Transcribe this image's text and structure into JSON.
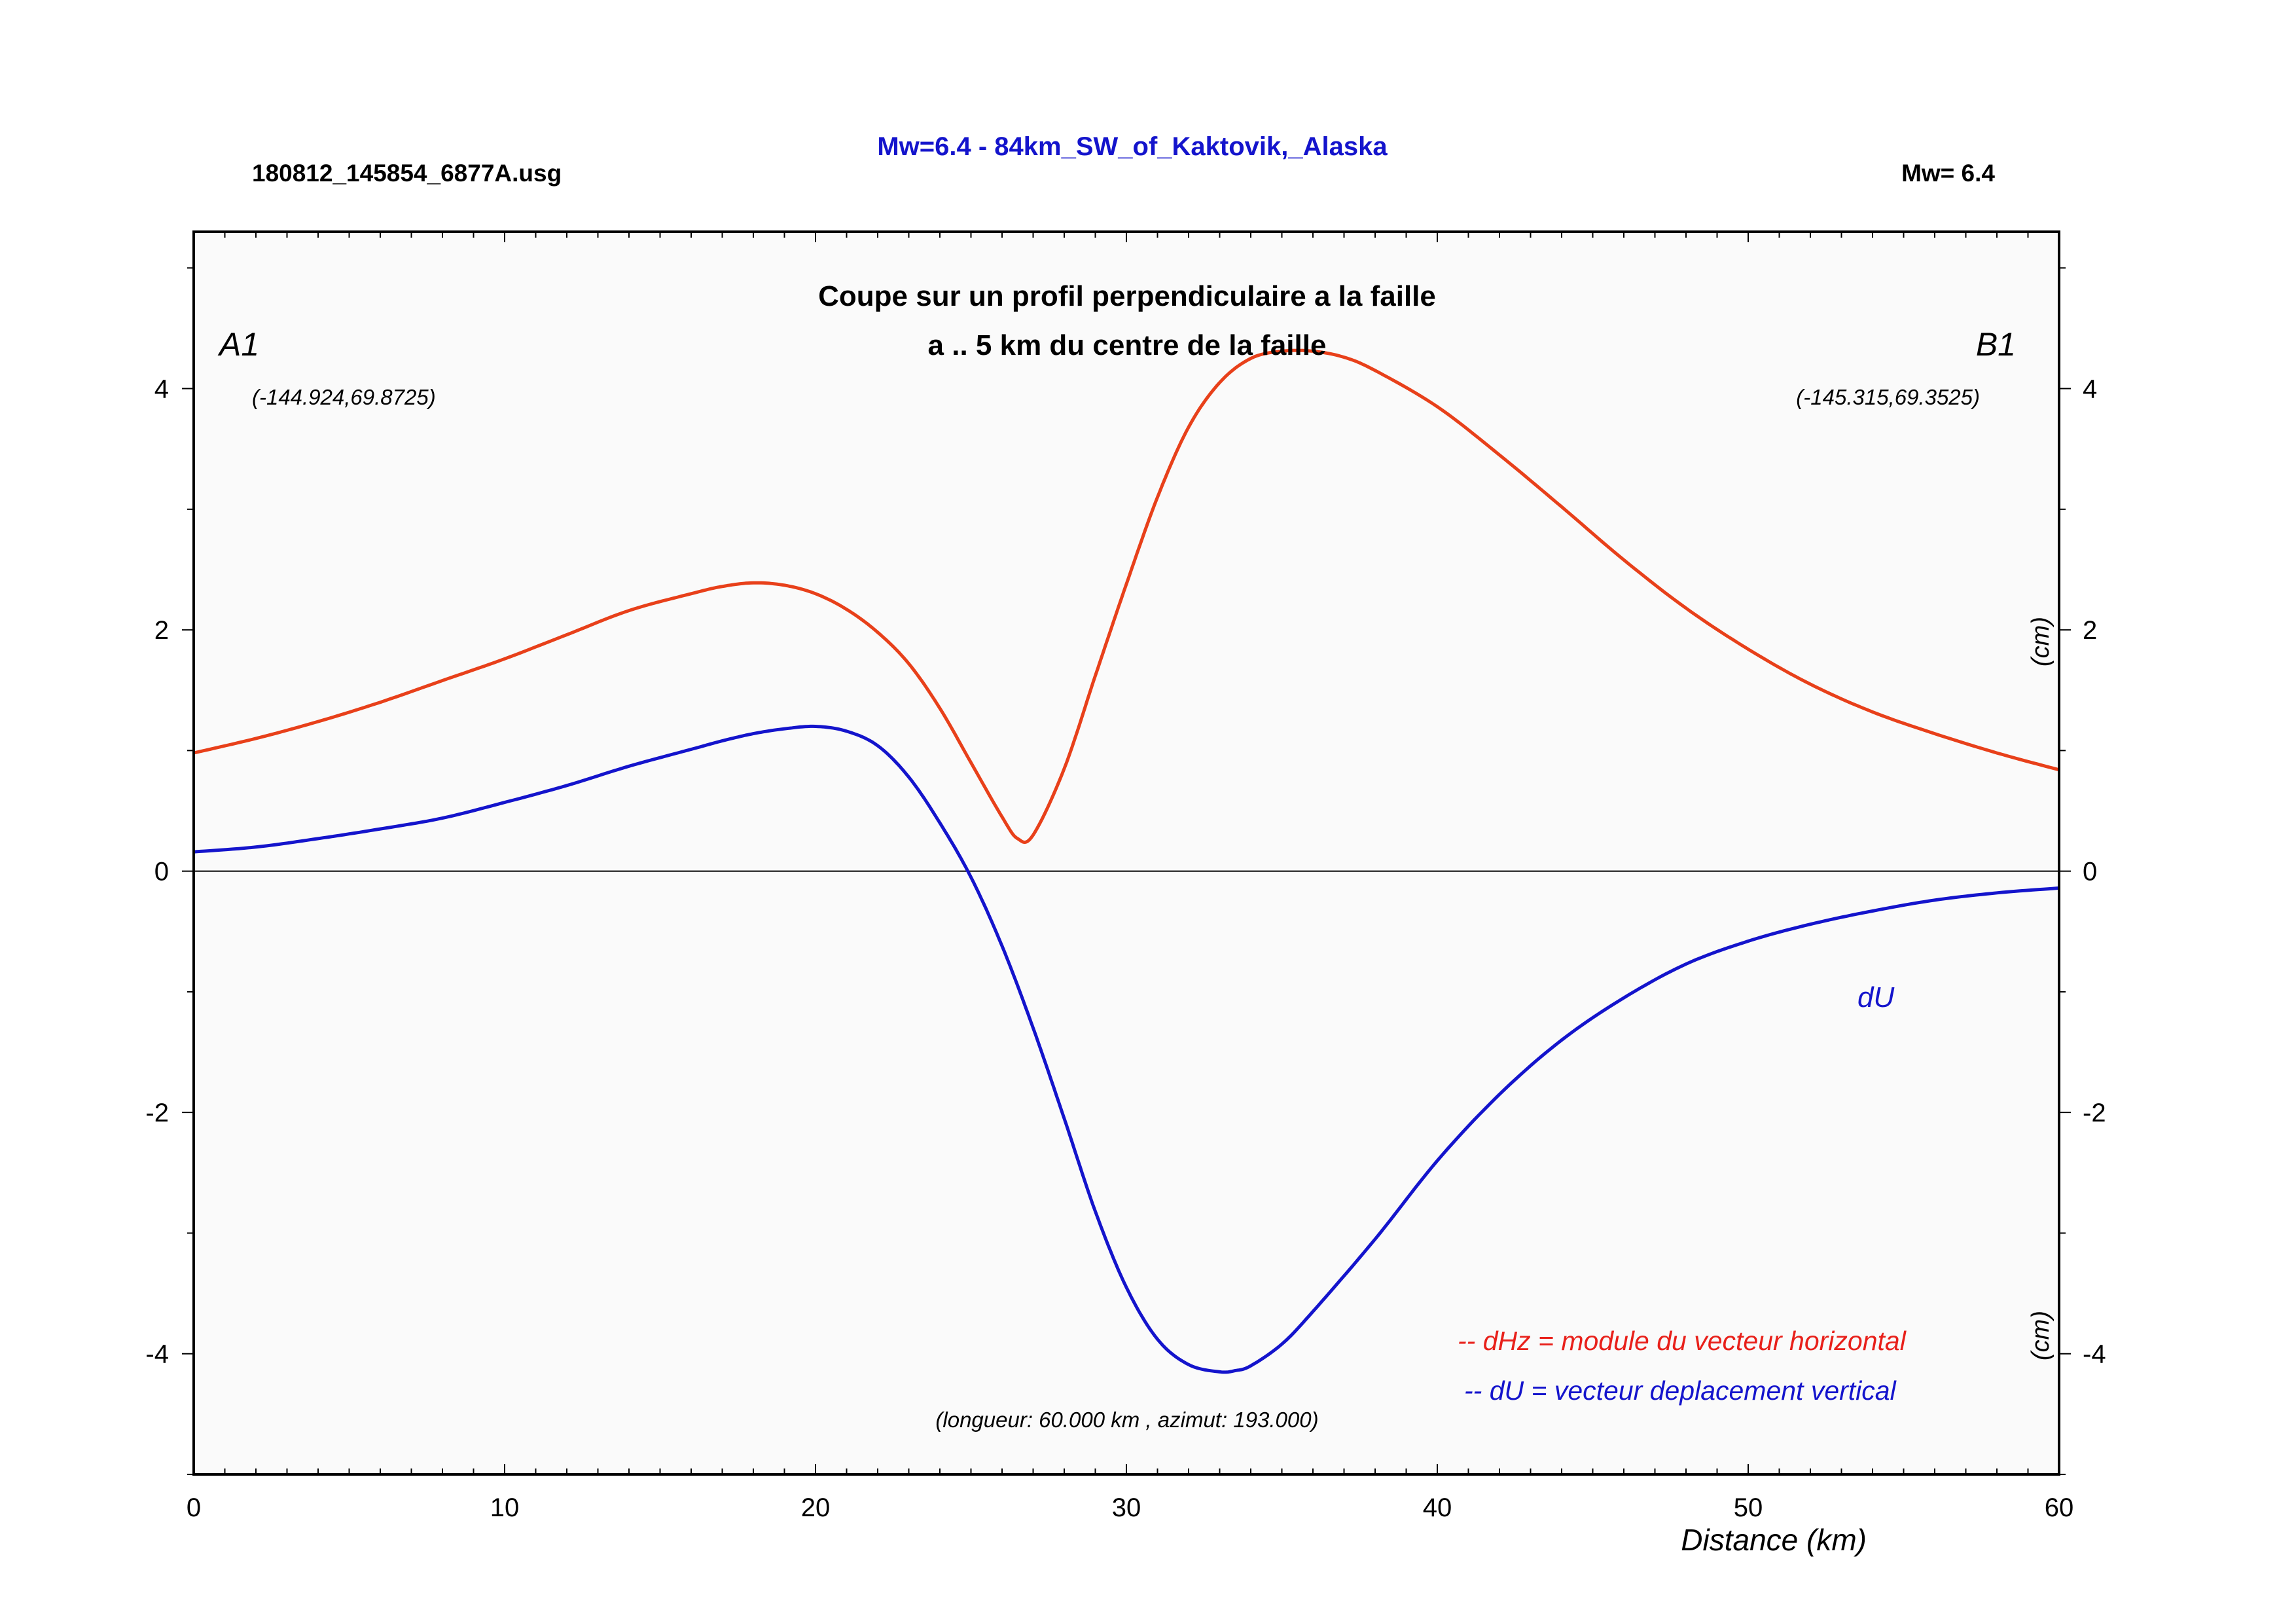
{
  "header": {
    "title": "Mw=6.4 - 84km_SW_of_Kaktovik,_Alaska",
    "file_name": "180812_145854_6877A.usg",
    "magnitude": "Mw= 6.4"
  },
  "chart_data": {
    "type": "line",
    "title": "Coupe sur un profil perpendiculaire a la faille",
    "subtitle": "a .. 5 km du centre de la faille",
    "xlabel": "Distance (km)",
    "ylabel": "(cm)",
    "xlim": [
      0,
      60
    ],
    "ylim": [
      -5,
      5.3
    ],
    "x_ticks": [
      0,
      10,
      20,
      30,
      40,
      50,
      60
    ],
    "y_ticks": [
      -4,
      -2,
      0,
      2,
      4
    ],
    "grid": false,
    "legend_position": "bottom-right",
    "colors": {
      "dHz": "#e8401a",
      "dU": "#1414cc",
      "zero_line": "#000000",
      "plot_bg": "#fafafa"
    },
    "annotations": {
      "start_label": "A1",
      "end_label": "B1",
      "start_coords": "(-144.924,69.8725)",
      "end_coords": "(-145.315,69.3525)",
      "du_label": "dU",
      "profile_info": "(longueur: 60.000 km , azimut: 193.000)",
      "legend_dhz": "-- dHz = module du vecteur horizontal",
      "legend_du": "-- dU =  vecteur deplacement vertical"
    },
    "series": [
      {
        "key": "dHz",
        "x": [
          0,
          2,
          4,
          6,
          8,
          10,
          12,
          14,
          16,
          17,
          18,
          19,
          20,
          21,
          22,
          23,
          24,
          25,
          26,
          26.5,
          27,
          28,
          29,
          30,
          31,
          32,
          33,
          34,
          35,
          36,
          37,
          38,
          40,
          42,
          44,
          46,
          48,
          50,
          52,
          54,
          56,
          58,
          60
        ],
        "y": [
          0.98,
          1.1,
          1.24,
          1.4,
          1.58,
          1.76,
          1.96,
          2.16,
          2.3,
          2.36,
          2.39,
          2.37,
          2.3,
          2.17,
          1.98,
          1.72,
          1.35,
          0.9,
          0.45,
          0.27,
          0.3,
          0.85,
          1.62,
          2.38,
          3.1,
          3.68,
          4.05,
          4.25,
          4.31,
          4.31,
          4.26,
          4.15,
          3.85,
          3.45,
          3.02,
          2.58,
          2.18,
          1.84,
          1.55,
          1.32,
          1.14,
          0.98,
          0.84
        ]
      },
      {
        "key": "dU",
        "x": [
          0,
          2,
          4,
          6,
          8,
          10,
          12,
          14,
          16,
          17,
          18,
          19,
          20,
          21,
          22,
          23,
          24,
          25,
          26,
          27,
          28,
          29,
          30,
          31,
          32,
          33,
          33.5,
          34,
          35,
          36,
          38,
          40,
          42,
          44,
          46,
          48,
          50,
          52,
          54,
          56,
          58,
          60
        ],
        "y": [
          0.16,
          0.2,
          0.27,
          0.35,
          0.44,
          0.57,
          0.71,
          0.87,
          1.01,
          1.08,
          1.14,
          1.18,
          1.2,
          1.16,
          1.04,
          0.78,
          0.4,
          -0.05,
          -0.62,
          -1.3,
          -2.05,
          -2.82,
          -3.45,
          -3.88,
          -4.09,
          -4.15,
          -4.14,
          -4.1,
          -3.92,
          -3.65,
          -3.05,
          -2.4,
          -1.85,
          -1.4,
          -1.05,
          -0.77,
          -0.58,
          -0.44,
          -0.33,
          -0.24,
          -0.18,
          -0.14
        ]
      }
    ]
  }
}
